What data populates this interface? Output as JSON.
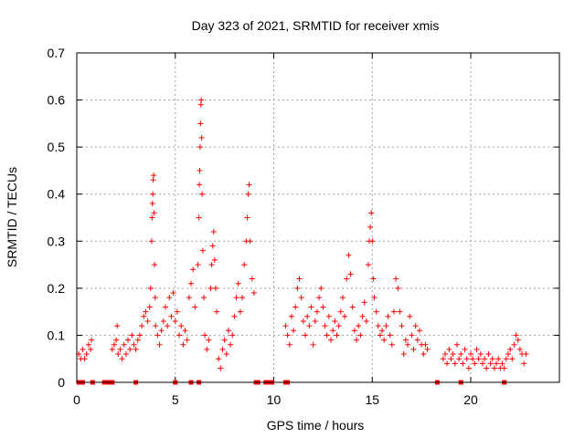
{
  "chart_data": {
    "type": "scatter",
    "title": "Day 323 of 2021, SRMTID for receiver xmis",
    "xlabel": "GPS time / hours",
    "ylabel": "SRMTID / TECUs",
    "xlim": [
      0,
      24.5
    ],
    "ylim": [
      0,
      0.7
    ],
    "xticks": [
      0,
      5,
      10,
      15,
      20
    ],
    "xtick_labels": [
      "0",
      "5",
      "10",
      "15",
      "20"
    ],
    "yticks": [
      0,
      0.1,
      0.2,
      0.3,
      0.4,
      0.5,
      0.6,
      0.7
    ],
    "ytick_labels": [
      "0",
      "0.1",
      "0.2",
      "0.3",
      "0.4",
      "0.5",
      "0.6",
      "0.7"
    ],
    "grid": true,
    "marker": "+",
    "color": "#ff0000",
    "series": [
      {
        "name": "SRMTID",
        "points": [
          [
            0.1,
            0.06
          ],
          [
            0.2,
            0.05
          ],
          [
            0.3,
            0.07
          ],
          [
            0.4,
            0.05
          ],
          [
            0.5,
            0.06
          ],
          [
            0.6,
            0.08
          ],
          [
            0.7,
            0.07
          ],
          [
            0.75,
            0.09
          ],
          [
            1.8,
            0.07
          ],
          [
            1.9,
            0.08
          ],
          [
            2.0,
            0.09
          ],
          [
            2.05,
            0.12
          ],
          [
            2.1,
            0.06
          ],
          [
            2.2,
            0.07
          ],
          [
            2.3,
            0.05
          ],
          [
            2.4,
            0.08
          ],
          [
            2.5,
            0.06
          ],
          [
            2.6,
            0.09
          ],
          [
            2.7,
            0.07
          ],
          [
            2.8,
            0.1
          ],
          [
            2.9,
            0.08
          ],
          [
            3.0,
            0.07
          ],
          [
            3.1,
            0.09
          ],
          [
            3.2,
            0.1
          ],
          [
            3.3,
            0.12
          ],
          [
            3.4,
            0.14
          ],
          [
            3.5,
            0.15
          ],
          [
            3.6,
            0.13
          ],
          [
            3.7,
            0.16
          ],
          [
            3.75,
            0.2
          ],
          [
            3.8,
            0.3
          ],
          [
            3.82,
            0.35
          ],
          [
            3.84,
            0.38
          ],
          [
            3.86,
            0.4
          ],
          [
            3.88,
            0.43
          ],
          [
            3.9,
            0.44
          ],
          [
            3.92,
            0.36
          ],
          [
            3.95,
            0.25
          ],
          [
            3.98,
            0.18
          ],
          [
            4.0,
            0.12
          ],
          [
            4.1,
            0.1
          ],
          [
            4.2,
            0.08
          ],
          [
            4.3,
            0.11
          ],
          [
            4.4,
            0.13
          ],
          [
            4.5,
            0.16
          ],
          [
            4.6,
            0.12
          ],
          [
            4.7,
            0.18
          ],
          [
            4.8,
            0.14
          ],
          [
            4.9,
            0.19
          ],
          [
            5.0,
            0.13
          ],
          [
            5.1,
            0.15
          ],
          [
            5.2,
            0.1
          ],
          [
            5.3,
            0.12
          ],
          [
            5.4,
            0.08
          ],
          [
            5.5,
            0.11
          ],
          [
            5.6,
            0.09
          ],
          [
            5.7,
            0.18
          ],
          [
            5.8,
            0.21
          ],
          [
            5.9,
            0.24
          ],
          [
            6.0,
            0.16
          ],
          [
            6.15,
            0.25
          ],
          [
            6.2,
            0.35
          ],
          [
            6.22,
            0.42
          ],
          [
            6.24,
            0.45
          ],
          [
            6.26,
            0.5
          ],
          [
            6.28,
            0.55
          ],
          [
            6.3,
            0.59
          ],
          [
            6.32,
            0.6
          ],
          [
            6.34,
            0.52
          ],
          [
            6.36,
            0.4
          ],
          [
            6.4,
            0.28
          ],
          [
            6.45,
            0.18
          ],
          [
            6.5,
            0.1
          ],
          [
            6.6,
            0.07
          ],
          [
            6.7,
            0.09
          ],
          [
            6.8,
            0.2
          ],
          [
            6.85,
            0.25
          ],
          [
            6.9,
            0.29
          ],
          [
            6.95,
            0.32
          ],
          [
            7.0,
            0.26
          ],
          [
            7.05,
            0.2
          ],
          [
            7.1,
            0.15
          ],
          [
            7.2,
            0.05
          ],
          [
            7.3,
            0.03
          ],
          [
            7.4,
            0.07
          ],
          [
            7.5,
            0.09
          ],
          [
            7.6,
            0.06
          ],
          [
            7.7,
            0.11
          ],
          [
            7.8,
            0.08
          ],
          [
            7.9,
            0.1
          ],
          [
            8.0,
            0.14
          ],
          [
            8.1,
            0.18
          ],
          [
            8.2,
            0.21
          ],
          [
            8.3,
            0.15
          ],
          [
            8.4,
            0.18
          ],
          [
            8.5,
            0.25
          ],
          [
            8.6,
            0.3
          ],
          [
            8.65,
            0.35
          ],
          [
            8.7,
            0.4
          ],
          [
            8.75,
            0.42
          ],
          [
            8.8,
            0.3
          ],
          [
            8.9,
            0.22
          ],
          [
            9.0,
            0.19
          ],
          [
            10.6,
            0.12
          ],
          [
            10.7,
            0.1
          ],
          [
            10.8,
            0.08
          ],
          [
            10.9,
            0.14
          ],
          [
            11.0,
            0.11
          ],
          [
            11.1,
            0.16
          ],
          [
            11.2,
            0.2
          ],
          [
            11.3,
            0.22
          ],
          [
            11.4,
            0.18
          ],
          [
            11.5,
            0.13
          ],
          [
            11.6,
            0.1
          ],
          [
            11.7,
            0.14
          ],
          [
            11.8,
            0.12
          ],
          [
            11.9,
            0.16
          ],
          [
            12.0,
            0.08
          ],
          [
            12.1,
            0.13
          ],
          [
            12.2,
            0.15
          ],
          [
            12.3,
            0.18
          ],
          [
            12.4,
            0.2
          ],
          [
            12.5,
            0.16
          ],
          [
            12.6,
            0.12
          ],
          [
            12.7,
            0.1
          ],
          [
            12.8,
            0.14
          ],
          [
            12.9,
            0.09
          ],
          [
            13.0,
            0.11
          ],
          [
            13.1,
            0.13
          ],
          [
            13.2,
            0.1
          ],
          [
            13.3,
            0.12
          ],
          [
            13.4,
            0.15
          ],
          [
            13.5,
            0.18
          ],
          [
            13.6,
            0.14
          ],
          [
            13.7,
            0.22
          ],
          [
            13.8,
            0.27
          ],
          [
            13.9,
            0.23
          ],
          [
            14.0,
            0.16
          ],
          [
            14.1,
            0.11
          ],
          [
            14.2,
            0.09
          ],
          [
            14.3,
            0.12
          ],
          [
            14.4,
            0.1
          ],
          [
            14.5,
            0.14
          ],
          [
            14.6,
            0.17
          ],
          [
            14.7,
            0.13
          ],
          [
            14.8,
            0.25
          ],
          [
            14.85,
            0.3
          ],
          [
            14.9,
            0.33
          ],
          [
            14.95,
            0.36
          ],
          [
            15.0,
            0.3
          ],
          [
            15.05,
            0.22
          ],
          [
            15.1,
            0.18
          ],
          [
            15.2,
            0.15
          ],
          [
            15.3,
            0.12
          ],
          [
            15.4,
            0.1
          ],
          [
            15.5,
            0.11
          ],
          [
            15.6,
            0.09
          ],
          [
            15.7,
            0.12
          ],
          [
            15.8,
            0.14
          ],
          [
            15.9,
            0.1
          ],
          [
            16.0,
            0.08
          ],
          [
            16.1,
            0.15
          ],
          [
            16.2,
            0.22
          ],
          [
            16.3,
            0.2
          ],
          [
            16.4,
            0.15
          ],
          [
            16.5,
            0.12
          ],
          [
            16.6,
            0.06
          ],
          [
            16.7,
            0.09
          ],
          [
            16.8,
            0.08
          ],
          [
            16.9,
            0.14
          ],
          [
            17.0,
            0.1
          ],
          [
            17.1,
            0.07
          ],
          [
            17.2,
            0.12
          ],
          [
            17.3,
            0.09
          ],
          [
            17.4,
            0.11
          ],
          [
            17.5,
            0.08
          ],
          [
            17.6,
            0.06
          ],
          [
            17.7,
            0.08
          ],
          [
            17.8,
            0.07
          ],
          [
            18.6,
            0.05
          ],
          [
            18.7,
            0.06
          ],
          [
            18.8,
            0.04
          ],
          [
            18.9,
            0.07
          ],
          [
            19.0,
            0.05
          ],
          [
            19.1,
            0.06
          ],
          [
            19.2,
            0.04
          ],
          [
            19.3,
            0.08
          ],
          [
            19.4,
            0.05
          ],
          [
            19.5,
            0.06
          ],
          [
            19.6,
            0.04
          ],
          [
            19.7,
            0.07
          ],
          [
            19.8,
            0.05
          ],
          [
            19.9,
            0.03
          ],
          [
            20.0,
            0.06
          ],
          [
            20.1,
            0.05
          ],
          [
            20.2,
            0.04
          ],
          [
            20.3,
            0.07
          ],
          [
            20.4,
            0.05
          ],
          [
            20.5,
            0.06
          ],
          [
            20.6,
            0.04
          ],
          [
            20.7,
            0.05
          ],
          [
            20.8,
            0.03
          ],
          [
            20.9,
            0.06
          ],
          [
            21.0,
            0.04
          ],
          [
            21.1,
            0.05
          ],
          [
            21.2,
            0.03
          ],
          [
            21.3,
            0.04
          ],
          [
            21.4,
            0.05
          ],
          [
            21.5,
            0.03
          ],
          [
            21.6,
            0.04
          ],
          [
            21.7,
            0.03
          ],
          [
            21.8,
            0.05
          ],
          [
            21.9,
            0.06
          ],
          [
            22.0,
            0.07
          ],
          [
            22.1,
            0.05
          ],
          [
            22.2,
            0.08
          ],
          [
            22.3,
            0.1
          ],
          [
            22.4,
            0.09
          ],
          [
            22.5,
            0.07
          ],
          [
            22.6,
            0.06
          ],
          [
            22.7,
            0.04
          ],
          [
            22.8,
            0.06
          ]
        ]
      }
    ],
    "zero_markers_x": [
      0.1,
      0.2,
      0.3,
      0.8,
      1.4,
      1.5,
      1.6,
      1.7,
      1.8,
      3.0,
      5.0,
      5.8,
      6.2,
      9.1,
      9.2,
      9.6,
      9.7,
      9.8,
      9.9,
      10.6,
      10.7,
      18.3,
      19.5,
      21.7
    ]
  }
}
